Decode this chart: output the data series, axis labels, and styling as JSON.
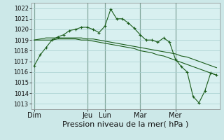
{
  "background_color": "#cce8e8",
  "plot_bg_color": "#d8f0f0",
  "grid_color": "#a8d0d0",
  "line_color": "#1a5c1a",
  "xlabel": "Pression niveau de la mer( hPa )",
  "ylim": [
    1012.5,
    1022.5
  ],
  "yticks": [
    1013,
    1014,
    1015,
    1016,
    1017,
    1018,
    1019,
    1020,
    1021,
    1022
  ],
  "day_labels": [
    "Dim",
    "Jeu",
    "Lun",
    "Mar",
    "Mer"
  ],
  "day_positions": [
    0,
    9,
    12,
    18,
    24
  ],
  "n_points": 32,
  "series1": [
    1016.6,
    1017.6,
    1018.3,
    1019.0,
    1019.3,
    1019.5,
    1019.9,
    1020.0,
    1020.2,
    1020.2,
    1020.0,
    1019.7,
    1020.3,
    1021.9,
    1021.0,
    1021.0,
    1020.6,
    1020.1,
    1019.5,
    1019.0,
    1019.0,
    1018.8,
    1019.2,
    1018.8,
    1017.2,
    1016.5,
    1016.0,
    1013.7,
    1013.1,
    1014.2,
    1015.9,
    1015.7
  ],
  "series2": [
    1019.0,
    1019.0,
    1019.0,
    1019.0,
    1019.1,
    1019.1,
    1019.1,
    1019.1,
    1019.0,
    1019.0,
    1018.9,
    1018.8,
    1018.7,
    1018.6,
    1018.5,
    1018.4,
    1018.3,
    1018.2,
    1018.0,
    1017.9,
    1017.8,
    1017.6,
    1017.5,
    1017.3,
    1017.1,
    1016.9,
    1016.7,
    1016.5,
    1016.3,
    1016.1,
    1015.9,
    1015.7
  ],
  "series3": [
    1019.0,
    1019.1,
    1019.2,
    1019.2,
    1019.2,
    1019.2,
    1019.2,
    1019.2,
    1019.2,
    1019.1,
    1019.1,
    1019.0,
    1018.9,
    1018.8,
    1018.7,
    1018.6,
    1018.5,
    1018.4,
    1018.3,
    1018.2,
    1018.1,
    1018.0,
    1017.9,
    1017.8,
    1017.7,
    1017.5,
    1017.4,
    1017.2,
    1017.0,
    1016.8,
    1016.6,
    1016.4
  ],
  "xlabel_fontsize": 8,
  "ytick_fontsize": 6,
  "xtick_fontsize": 7
}
